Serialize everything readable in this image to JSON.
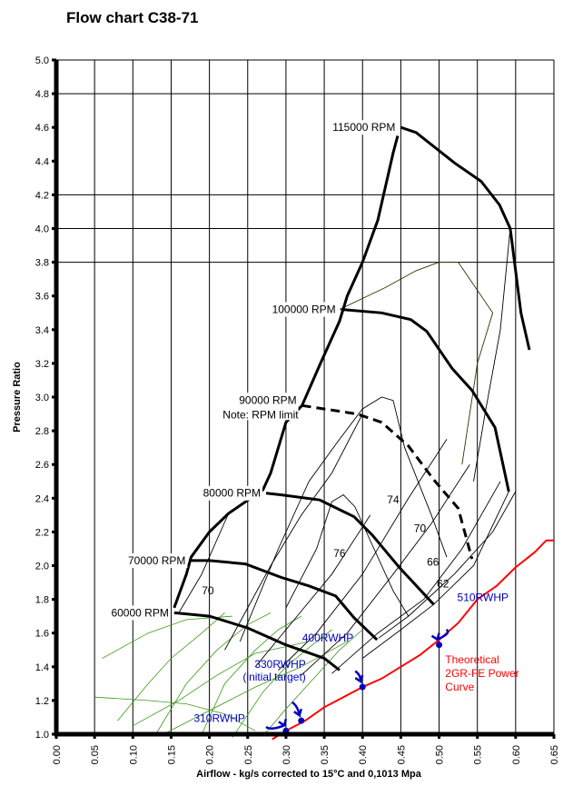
{
  "chart_data": {
    "type": "line",
    "title": "Flow chart C38-71",
    "xlabel": "Airflow - kg/s corrected to 15°C and 0,1013 Mpa",
    "ylabel": "Pressure Ratio",
    "xlim": [
      0,
      0.65
    ],
    "ylim": [
      1.0,
      5.0
    ],
    "x_ticks": [
      "0.00",
      "0.05",
      "0.10",
      "0.15",
      "0.20",
      "0.25",
      "0.30",
      "0.35",
      "0.40",
      "0.45",
      "0.50",
      "0.55",
      "0.60",
      "0.65"
    ],
    "y_ticks": [
      "1.0",
      "1.2",
      "1.4",
      "1.6",
      "1.8",
      "2.0",
      "2.2",
      "2.4",
      "2.6",
      "2.8",
      "3.0",
      "3.2",
      "3.4",
      "3.6",
      "3.8",
      "4.0",
      "4.2",
      "4.4",
      "4.6",
      "4.8",
      "5.0"
    ],
    "horizontal_grid": [
      3.8,
      4.0,
      4.2,
      4.8,
      5.0
    ],
    "vertical_grid": true,
    "speed_lines": [
      {
        "label": "60000 RPM",
        "points": [
          [
            0.154,
            1.72
          ],
          [
            0.2,
            1.7
          ],
          [
            0.25,
            1.63
          ],
          [
            0.3,
            1.53
          ],
          [
            0.35,
            1.45
          ],
          [
            0.37,
            1.38
          ]
        ]
      },
      {
        "label": "70000 RPM",
        "points": [
          [
            0.176,
            2.03
          ],
          [
            0.2,
            2.03
          ],
          [
            0.247,
            2.01
          ],
          [
            0.294,
            1.93
          ],
          [
            0.33,
            1.88
          ],
          [
            0.365,
            1.82
          ],
          [
            0.389,
            1.69
          ],
          [
            0.419,
            1.56
          ]
        ]
      },
      {
        "label": "80000 RPM",
        "points": [
          [
            0.274,
            2.43
          ],
          [
            0.294,
            2.42
          ],
          [
            0.344,
            2.39
          ],
          [
            0.389,
            2.29
          ],
          [
            0.413,
            2.18
          ],
          [
            0.448,
            1.99
          ],
          [
            0.493,
            1.77
          ]
        ]
      },
      {
        "label": "90000 RPM",
        "note": "Note: RPM limit",
        "dashed": true,
        "points": [
          [
            0.321,
            2.95
          ],
          [
            0.393,
            2.9
          ],
          [
            0.425,
            2.85
          ],
          [
            0.46,
            2.71
          ],
          [
            0.493,
            2.51
          ],
          [
            0.525,
            2.34
          ],
          [
            0.543,
            2.04
          ]
        ]
      },
      {
        "label": "100000 RPM",
        "points": [
          [
            0.372,
            3.52
          ],
          [
            0.425,
            3.5
          ],
          [
            0.463,
            3.46
          ],
          [
            0.484,
            3.39
          ],
          [
            0.517,
            3.17
          ],
          [
            0.543,
            3.04
          ],
          [
            0.573,
            2.82
          ],
          [
            0.591,
            2.44
          ]
        ]
      },
      {
        "label": "115000 RPM",
        "points": [
          [
            0.45,
            4.6
          ],
          [
            0.47,
            4.57
          ],
          [
            0.52,
            4.39
          ],
          [
            0.555,
            4.28
          ],
          [
            0.579,
            4.14
          ],
          [
            0.593,
            4.0
          ],
          [
            0.607,
            3.5
          ],
          [
            0.618,
            3.28
          ]
        ]
      }
    ],
    "surge_line": [
      [
        0.154,
        1.75
      ],
      [
        0.17,
        1.95
      ],
      [
        0.176,
        2.05
      ],
      [
        0.2,
        2.2
      ],
      [
        0.225,
        2.31
      ],
      [
        0.27,
        2.45
      ],
      [
        0.28,
        2.55
      ],
      [
        0.3,
        2.85
      ],
      [
        0.321,
        2.95
      ],
      [
        0.345,
        3.2
      ],
      [
        0.37,
        3.45
      ],
      [
        0.38,
        3.6
      ],
      [
        0.4,
        3.8
      ],
      [
        0.42,
        4.05
      ],
      [
        0.44,
        4.45
      ],
      [
        0.446,
        4.55
      ]
    ],
    "efficiency_islands": [
      {
        "label": "76",
        "label_at": [
          0.37,
          2.05
        ],
        "points": [
          [
            0.3,
            1.75
          ],
          [
            0.34,
            2.1
          ],
          [
            0.36,
            2.38
          ],
          [
            0.375,
            2.42
          ],
          [
            0.39,
            2.35
          ],
          [
            0.415,
            2.1
          ],
          [
            0.44,
            1.85
          ],
          [
            0.46,
            1.7
          ]
        ]
      },
      {
        "label": "74",
        "label_at": [
          0.44,
          2.37
        ],
        "points": [
          [
            0.24,
            1.55
          ],
          [
            0.29,
            2.1
          ],
          [
            0.33,
            2.5
          ],
          [
            0.37,
            2.75
          ],
          [
            0.4,
            2.93
          ],
          [
            0.425,
            3.0
          ],
          [
            0.44,
            2.98
          ],
          [
            0.455,
            2.7
          ],
          [
            0.49,
            2.3
          ],
          [
            0.51,
            2.05
          ]
        ]
      },
      {
        "label": "70",
        "label_at": [
          0.475,
          2.2
        ],
        "points": [
          [
            0.22,
            1.5
          ],
          [
            0.25,
            1.75
          ],
          [
            0.28,
            2.0
          ],
          [
            0.32,
            2.3
          ],
          [
            0.36,
            2.55
          ],
          [
            0.4,
            2.9
          ]
        ]
      },
      {
        "label": "66",
        "label_at": [
          0.492,
          2.0
        ],
        "points": [
          [
            0.37,
            3.52
          ],
          [
            0.43,
            3.65
          ],
          [
            0.47,
            3.75
          ],
          [
            0.5,
            3.8
          ],
          [
            0.525,
            3.8
          ],
          [
            0.54,
            3.7
          ],
          [
            0.57,
            3.5
          ],
          [
            0.55,
            3.2
          ],
          [
            0.53,
            2.6
          ]
        ]
      },
      {
        "label": "62",
        "label_at": [
          0.505,
          1.87
        ],
        "points": [
          [
            0.593,
            4.0
          ],
          [
            0.58,
            3.4
          ],
          [
            0.56,
            2.9
          ],
          [
            0.545,
            2.5
          ]
        ]
      },
      {
        "label": "70",
        "label_at": [
          0.198,
          1.83
        ],
        "points": [
          [
            0.16,
            1.72
          ],
          [
            0.19,
            1.95
          ],
          [
            0.225,
            2.31
          ]
        ]
      }
    ],
    "choke_lines": [
      [
        [
          0.26,
          1.4
        ],
        [
          0.3,
          1.62
        ],
        [
          0.36,
          1.95
        ],
        [
          0.41,
          2.3
        ]
      ],
      [
        [
          0.29,
          1.38
        ],
        [
          0.34,
          1.6
        ],
        [
          0.4,
          1.95
        ],
        [
          0.46,
          2.4
        ],
        [
          0.51,
          2.75
        ]
      ],
      [
        [
          0.32,
          1.35
        ],
        [
          0.38,
          1.6
        ],
        [
          0.44,
          1.95
        ],
        [
          0.49,
          2.25
        ],
        [
          0.54,
          2.6
        ]
      ],
      [
        [
          0.36,
          1.36
        ],
        [
          0.42,
          1.6
        ],
        [
          0.48,
          1.8
        ],
        [
          0.53,
          2.1
        ],
        [
          0.58,
          2.5
        ]
      ],
      [
        [
          0.4,
          1.45
        ],
        [
          0.45,
          1.62
        ],
        [
          0.493,
          1.77
        ],
        [
          0.545,
          2.0
        ],
        [
          0.591,
          2.44
        ]
      ],
      [
        [
          0.421,
          1.57
        ],
        [
          0.46,
          1.7
        ],
        [
          0.52,
          1.95
        ],
        [
          0.57,
          2.2
        ],
        [
          0.6,
          2.44
        ]
      ]
    ],
    "secondary_map_lines": [
      [
        [
          0.06,
          1.45
        ],
        [
          0.12,
          1.6
        ],
        [
          0.17,
          1.68
        ],
        [
          0.23,
          1.7
        ]
      ],
      [
        [
          0.05,
          1.22
        ],
        [
          0.12,
          1.2
        ],
        [
          0.17,
          1.18
        ],
        [
          0.22,
          1.12
        ],
        [
          0.26,
          1.02
        ]
      ],
      [
        [
          0.1,
          1.05
        ],
        [
          0.16,
          1.2
        ],
        [
          0.21,
          1.35
        ],
        [
          0.26,
          1.48
        ],
        [
          0.33,
          1.55
        ]
      ],
      [
        [
          0.14,
          1.0
        ],
        [
          0.2,
          1.14
        ],
        [
          0.26,
          1.28
        ],
        [
          0.32,
          1.4
        ],
        [
          0.38,
          1.55
        ]
      ],
      [
        [
          0.08,
          1.08
        ],
        [
          0.12,
          1.3
        ],
        [
          0.15,
          1.45
        ],
        [
          0.19,
          1.6
        ],
        [
          0.22,
          1.72
        ]
      ],
      [
        [
          0.13,
          1.0
        ],
        [
          0.17,
          1.3
        ],
        [
          0.21,
          1.5
        ],
        [
          0.25,
          1.65
        ],
        [
          0.28,
          1.72
        ]
      ],
      [
        [
          0.19,
          1.0
        ],
        [
          0.22,
          1.3
        ],
        [
          0.26,
          1.5
        ],
        [
          0.29,
          1.62
        ],
        [
          0.32,
          1.7
        ]
      ],
      [
        [
          0.23,
          0.98
        ],
        [
          0.27,
          1.25
        ],
        [
          0.3,
          1.4
        ],
        [
          0.34,
          1.55
        ],
        [
          0.36,
          1.62
        ]
      ],
      [
        [
          0.27,
          0.99
        ],
        [
          0.3,
          1.15
        ],
        [
          0.33,
          1.3
        ],
        [
          0.37,
          1.5
        ],
        [
          0.4,
          1.62
        ]
      ]
    ],
    "power_curve": {
      "label": "Theoretical 2GR-FE Power Curve",
      "color": "#ff0000",
      "points": [
        [
          0.282,
          0.97
        ],
        [
          0.3,
          1.02
        ],
        [
          0.325,
          1.08
        ],
        [
          0.35,
          1.16
        ],
        [
          0.375,
          1.22
        ],
        [
          0.4,
          1.28
        ],
        [
          0.425,
          1.33
        ],
        [
          0.45,
          1.4
        ],
        [
          0.475,
          1.47
        ],
        [
          0.5,
          1.56
        ],
        [
          0.525,
          1.66
        ],
        [
          0.55,
          1.8
        ],
        [
          0.575,
          1.88
        ],
        [
          0.6,
          1.99
        ],
        [
          0.625,
          2.08
        ],
        [
          0.64,
          2.15
        ],
        [
          0.65,
          2.15
        ]
      ]
    },
    "annotations": [
      {
        "text": "310RWHP",
        "x": 0.3,
        "y": 1.02,
        "color": "#0000c0"
      },
      {
        "text": "330RWHP",
        "text2": "(initial target)",
        "x": 0.32,
        "y": 1.08,
        "color": "#0000c0"
      },
      {
        "text": "400RWHP",
        "x": 0.4,
        "y": 1.28,
        "color": "#0000c0"
      },
      {
        "text": "510RWHP",
        "x": 0.5,
        "y": 1.53,
        "color": "#0000c0"
      }
    ]
  }
}
